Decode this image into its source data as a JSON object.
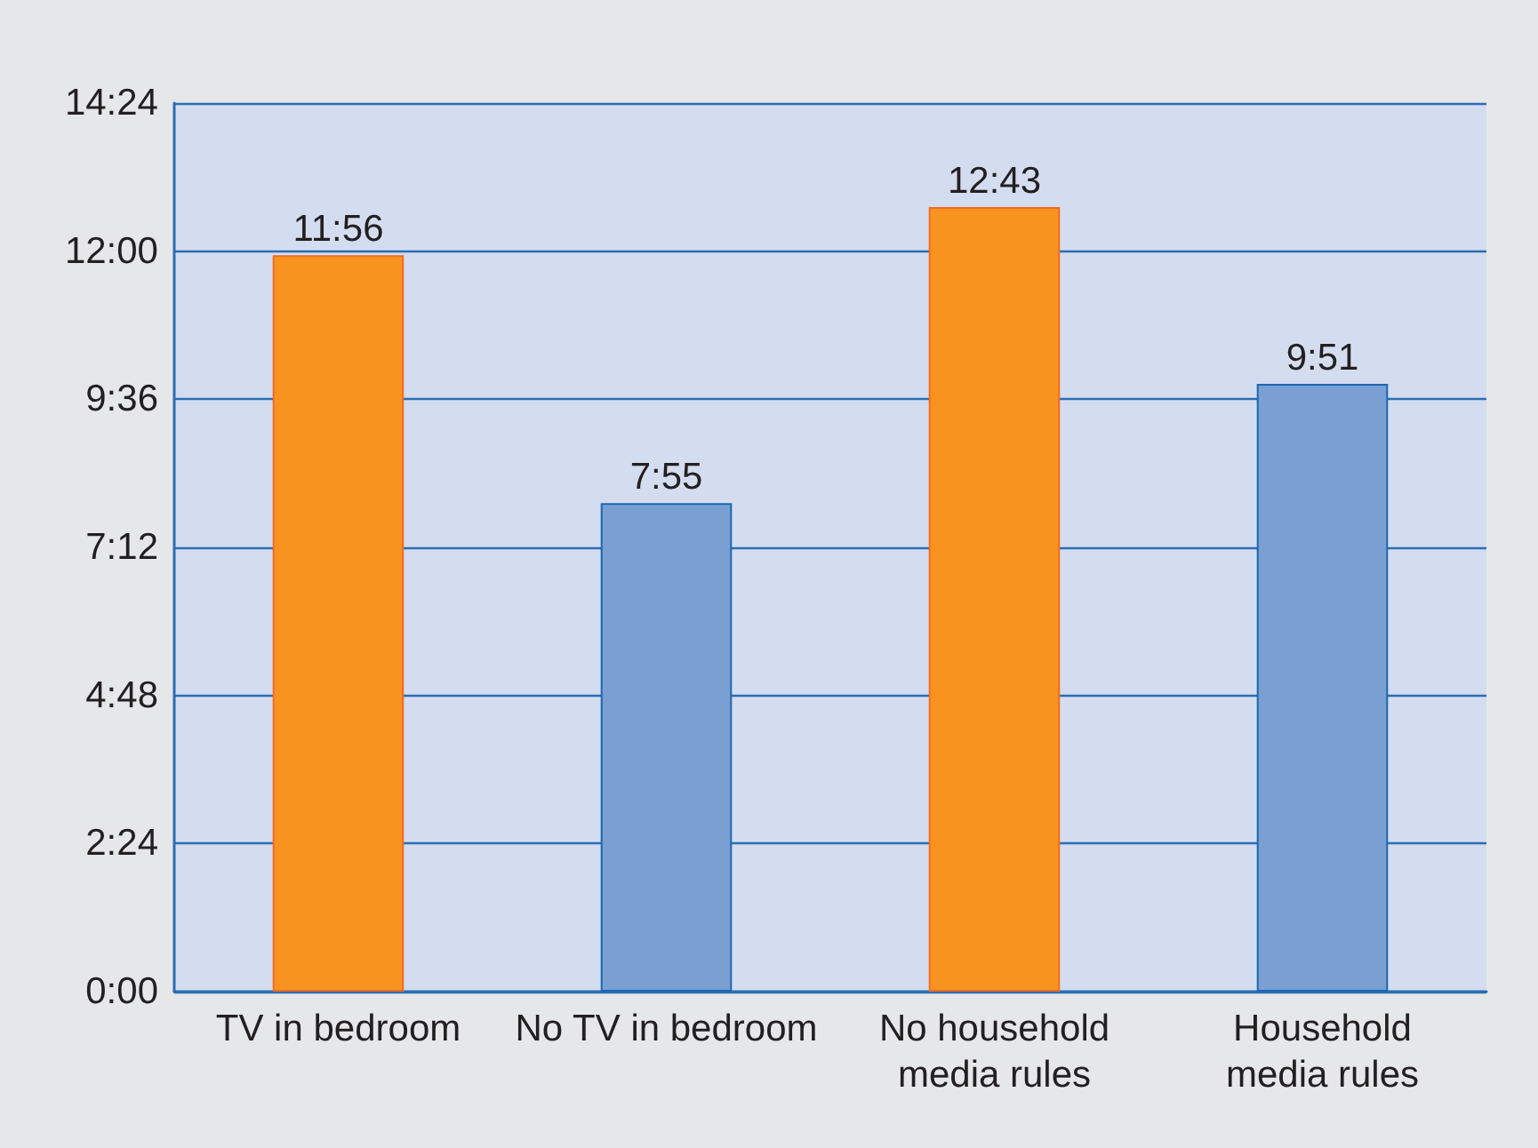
{
  "chart_data": {
    "type": "bar",
    "categories": [
      "TV in bedroom",
      "No TV in bedroom",
      "No household media rules",
      "Household media rules"
    ],
    "values": [
      11.933,
      7.917,
      12.717,
      9.85
    ],
    "value_labels": [
      "11:56",
      "7:55",
      "12:43",
      "9:51"
    ],
    "colors": [
      "#f7931e",
      "#7a9fd3",
      "#f7931e",
      "#7a9fd3"
    ],
    "ylim": [
      0,
      14.4
    ],
    "yticks": [
      {
        "value": 0,
        "label": "0:00"
      },
      {
        "value": 2.4,
        "label": "2:24"
      },
      {
        "value": 4.8,
        "label": "4:48"
      },
      {
        "value": 7.2,
        "label": "7:12"
      },
      {
        "value": 9.6,
        "label": "9:36"
      },
      {
        "value": 12,
        "label": "12:00"
      },
      {
        "value": 14.4,
        "label": "14:24"
      }
    ],
    "grid": "y"
  }
}
